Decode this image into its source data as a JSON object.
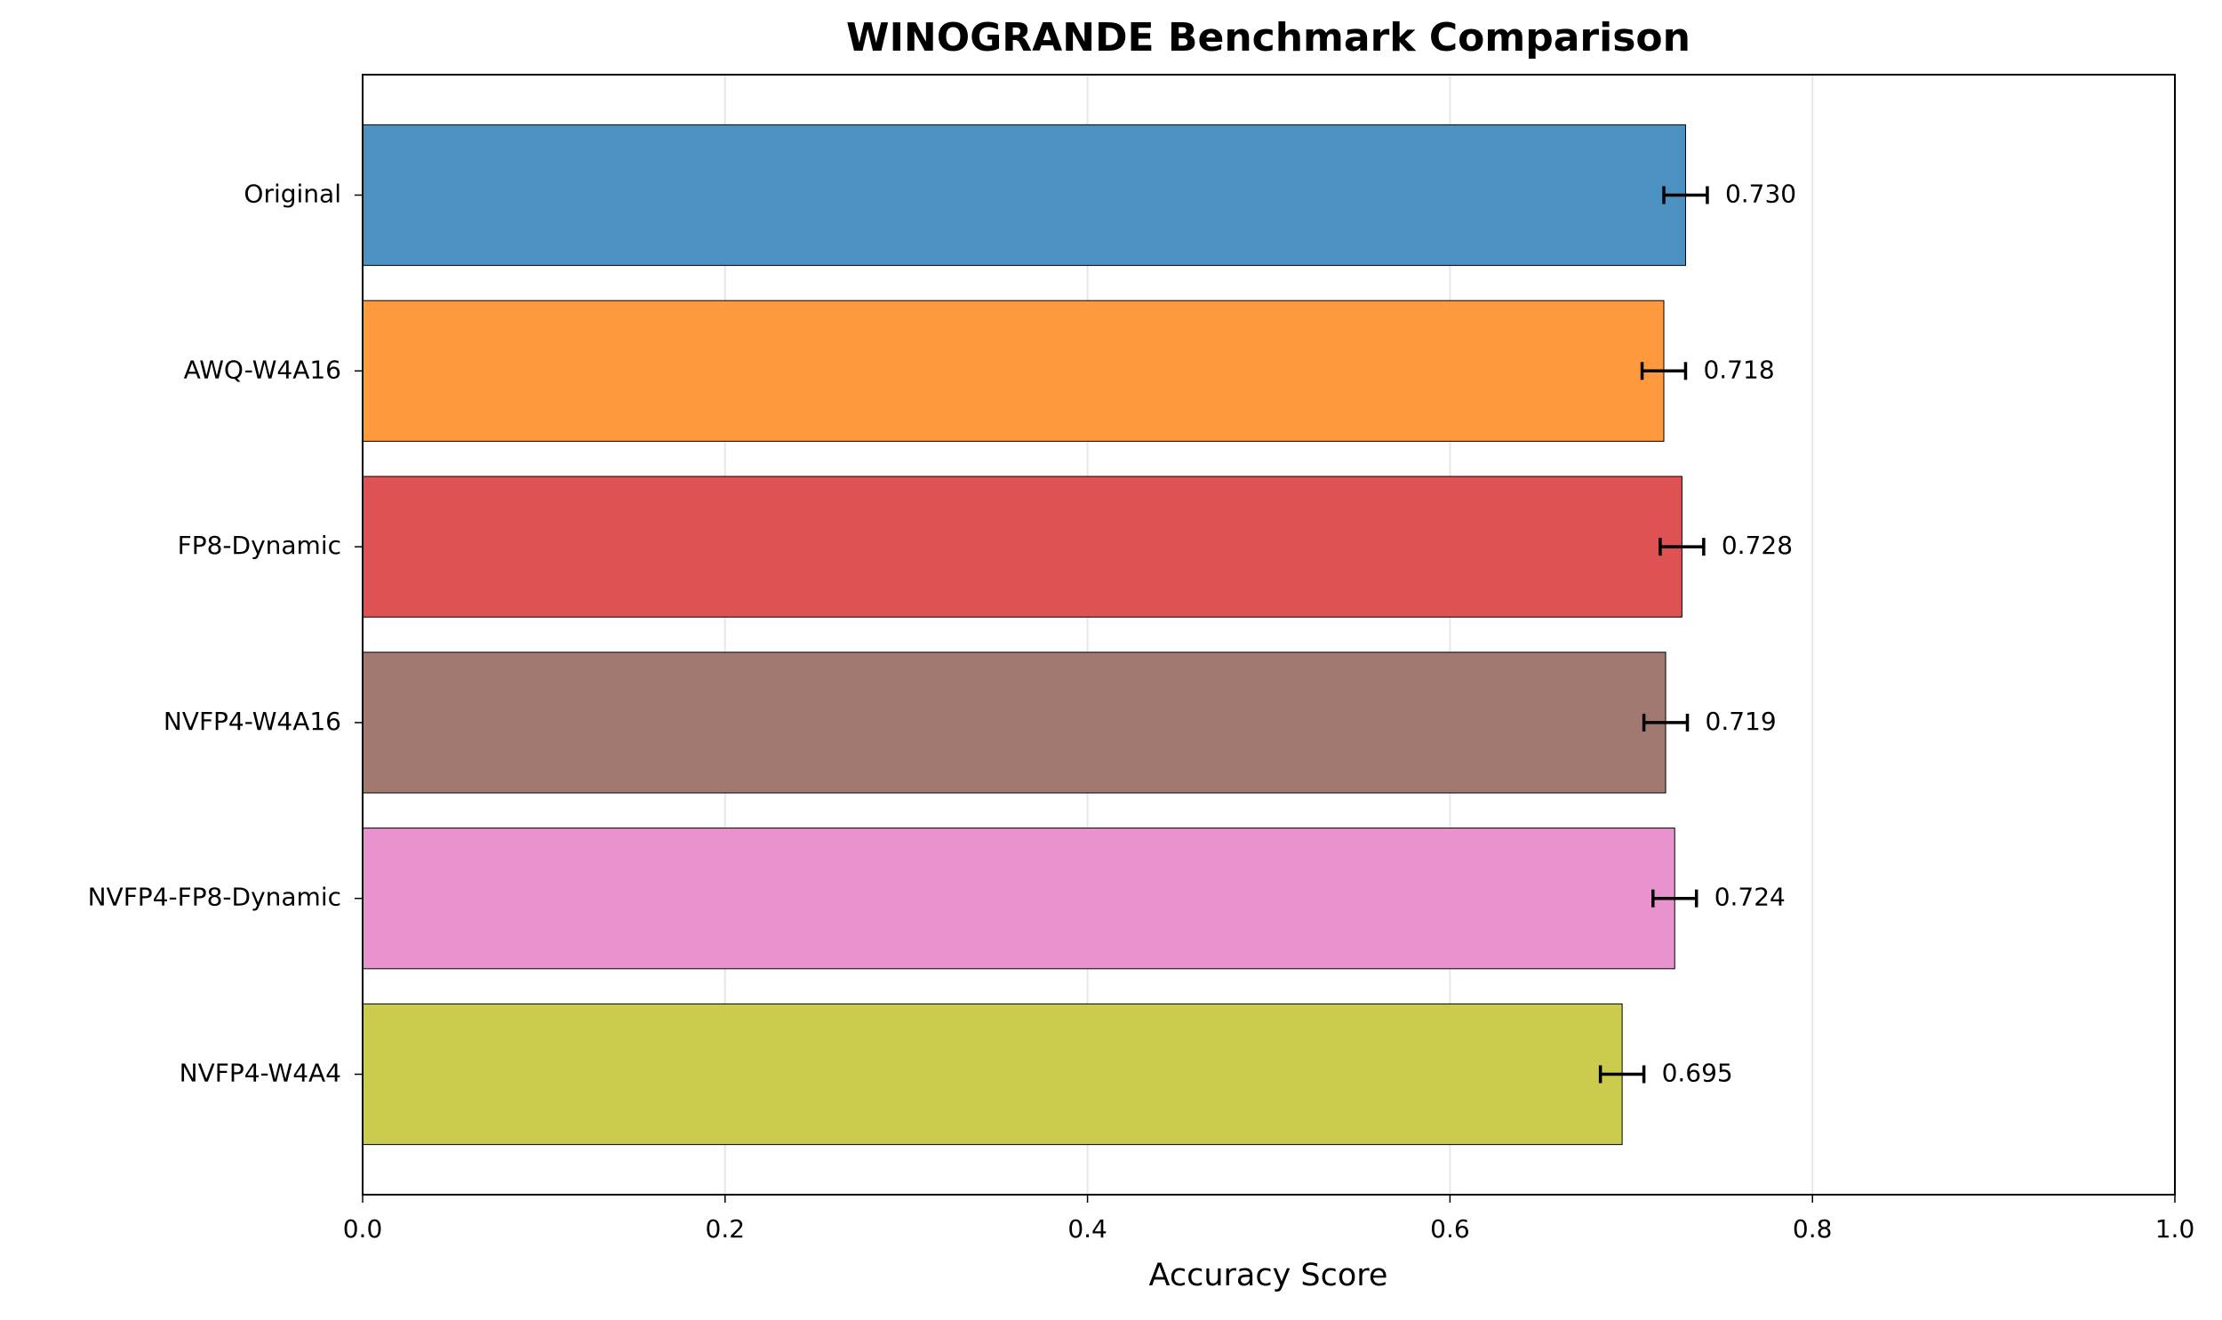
{
  "chart_data": {
    "type": "barh",
    "title": "WINOGRANDE Benchmark Comparison",
    "xlabel": "Accuracy Score",
    "categories": [
      "Original",
      "AWQ-W4A16",
      "FP8-Dynamic",
      "NVFP4-W4A16",
      "NVFP4-FP8-Dynamic",
      "NVFP4-W4A4"
    ],
    "values": [
      0.73,
      0.718,
      0.728,
      0.719,
      0.724,
      0.695
    ],
    "value_labels": [
      "0.730",
      "0.718",
      "0.728",
      "0.719",
      "0.724",
      "0.695"
    ],
    "errors": [
      0.012,
      0.012,
      0.012,
      0.012,
      0.012,
      0.012
    ],
    "colors": [
      "#4b92c3",
      "#ff993e",
      "#df5253",
      "#a27970",
      "#e892ce",
      "#cbcc4d"
    ],
    "xlim": [
      0,
      1
    ],
    "xticks": [
      {
        "value": 0,
        "label": "0.0"
      },
      {
        "value": 0.2,
        "label": "0.2"
      },
      {
        "value": 0.4,
        "label": "0.4"
      },
      {
        "value": 0.6,
        "label": "0.6"
      },
      {
        "value": 0.8,
        "label": "0.8"
      },
      {
        "value": 1,
        "label": "1.0"
      }
    ],
    "grid": true
  }
}
